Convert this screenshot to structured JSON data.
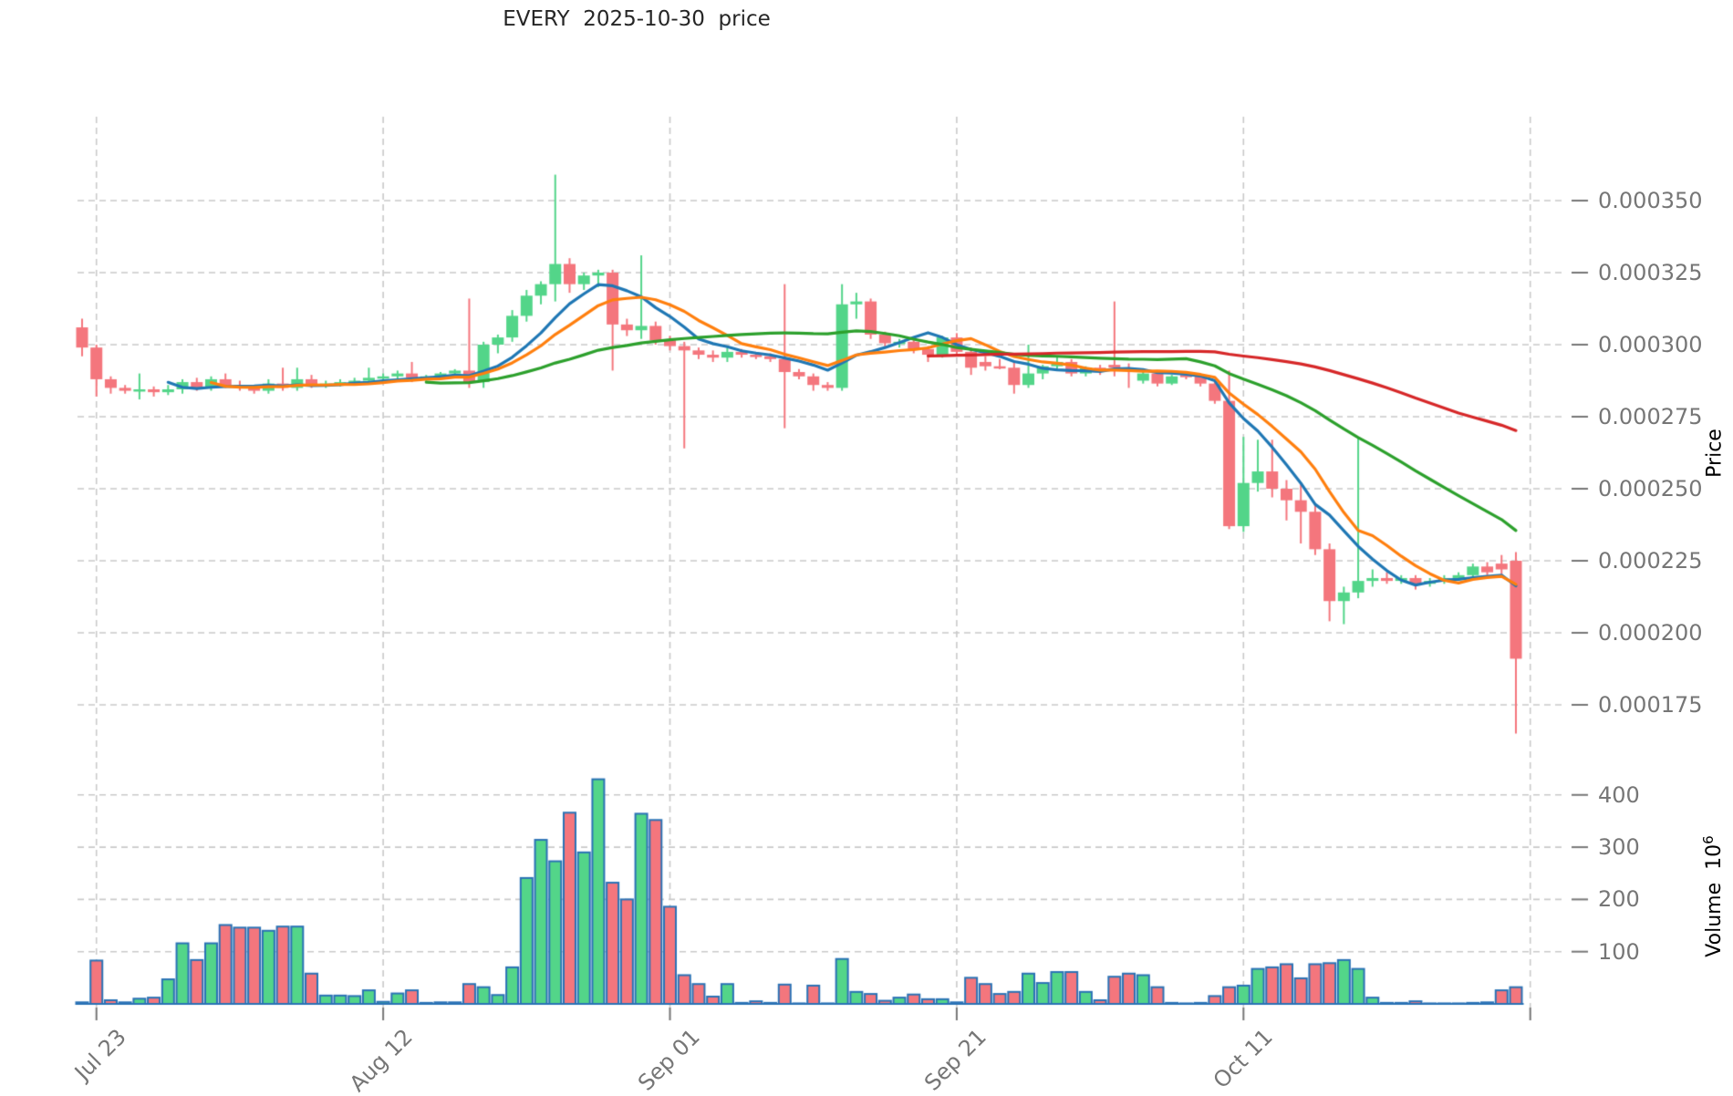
{
  "title": "EVERY  2025-10-30  price",
  "chart_data": {
    "type": "candlestick",
    "symbol": "EVERY",
    "as_of_date": "2025-10-30",
    "title": "EVERY  2025-10-30  price",
    "grid": true,
    "price_axis": {
      "label": "Price",
      "side": "right",
      "tick_labels": [
        "0.000350",
        "0.000325",
        "0.000300",
        "0.000275",
        "0.000250",
        "0.000225",
        "0.000200",
        "0.000175"
      ],
      "tick_values_micro": [
        350,
        325,
        300,
        275,
        250,
        225,
        200,
        175
      ],
      "ylim_micro": [
        158,
        379
      ]
    },
    "volume_axis": {
      "label": "Volume",
      "unit_base": "10",
      "unit_exponent": "6",
      "side": "right",
      "tick_labels": [
        "400",
        "300",
        "200",
        "100"
      ],
      "tick_values": [
        400,
        300,
        200,
        100
      ],
      "ylim": [
        0,
        447
      ]
    },
    "x_axis": {
      "tick_labels": [
        "Jul 23",
        "Aug 12",
        "Sep 01",
        "Sep 21",
        "Oct 11"
      ],
      "tick_day_index": [
        1,
        21,
        41,
        61,
        81
      ],
      "extra_gridline_day_index": 101,
      "label_rotation_deg": 45
    },
    "price_scale_note": "ohlc values below are price * 1e6; volume in millions",
    "columns": [
      "date",
      "open",
      "high",
      "low",
      "close",
      "volume_m"
    ],
    "candles": [
      [
        "Jul 22",
        306,
        309,
        296,
        299,
        3
      ],
      [
        "Jul 23",
        299,
        300,
        282,
        288,
        83
      ],
      [
        "Jul 24",
        288,
        289,
        283,
        285,
        7
      ],
      [
        "Jul 25",
        285,
        286,
        283,
        284,
        3
      ],
      [
        "Jul 26",
        284,
        290,
        281,
        284.5,
        10
      ],
      [
        "Jul 27",
        284.5,
        285.5,
        282,
        283.5,
        12
      ],
      [
        "Jul 28",
        283.5,
        286,
        282.5,
        284.5,
        47
      ],
      [
        "Jul 29",
        284.5,
        288,
        283,
        287,
        116
      ],
      [
        "Jul 30",
        287,
        288.5,
        284,
        285,
        84
      ],
      [
        "Jul 31",
        285,
        289,
        284,
        288,
        116
      ],
      [
        "Aug 01",
        288,
        290,
        285,
        286,
        151
      ],
      [
        "Aug 02",
        286,
        287.5,
        284,
        285,
        146
      ],
      [
        "Aug 03",
        285,
        286,
        283,
        284,
        146
      ],
      [
        "Aug 04",
        284,
        288,
        283,
        286.5,
        140
      ],
      [
        "Aug 05",
        286.5,
        292,
        284,
        285,
        148
      ],
      [
        "Aug 06",
        285,
        292,
        284,
        288,
        148
      ],
      [
        "Aug 07",
        288,
        289.5,
        285,
        286,
        58
      ],
      [
        "Aug 08",
        286,
        287.5,
        285,
        286.5,
        16
      ],
      [
        "Aug 09",
        286.5,
        288,
        285.5,
        287,
        16
      ],
      [
        "Aug 10",
        287,
        288.5,
        286,
        287.5,
        15
      ],
      [
        "Aug 11",
        287.5,
        292,
        287,
        288.5,
        26
      ],
      [
        "Aug 12",
        288.5,
        290,
        287,
        289,
        4
      ],
      [
        "Aug 13",
        289,
        291,
        288,
        290,
        20
      ],
      [
        "Aug 14",
        290,
        294,
        287,
        288.5,
        26
      ],
      [
        "Aug 15",
        288.5,
        289.5,
        287.5,
        289,
        2
      ],
      [
        "Aug 16",
        289,
        290.5,
        288,
        290,
        3
      ],
      [
        "Aug 17",
        290,
        291.5,
        288.5,
        291,
        3
      ],
      [
        "Aug 18",
        291,
        316,
        285,
        287,
        38
      ],
      [
        "Aug 19",
        287,
        301,
        285,
        300,
        32
      ],
      [
        "Aug 20",
        300,
        303.5,
        297,
        302.5,
        17
      ],
      [
        "Aug 21",
        302.5,
        312,
        301,
        310,
        70
      ],
      [
        "Aug 22",
        310,
        319,
        308,
        317,
        241
      ],
      [
        "Aug 23",
        317,
        322,
        314,
        321,
        314
      ],
      [
        "Aug 24",
        321,
        359,
        315,
        328,
        273
      ],
      [
        "Aug 25",
        328,
        330,
        318,
        321,
        366
      ],
      [
        "Aug 26",
        321,
        325,
        319,
        324,
        290
      ],
      [
        "Aug 27",
        324,
        326,
        320,
        325,
        430
      ],
      [
        "Aug 28",
        325,
        326,
        291,
        307,
        232
      ],
      [
        "Aug 29",
        307,
        309,
        303,
        305,
        200
      ],
      [
        "Aug 30",
        305,
        331,
        302,
        306.5,
        364
      ],
      [
        "Aug 31",
        306.5,
        308,
        300,
        301.5,
        352
      ],
      [
        "Sep 01",
        301.5,
        303,
        298,
        299.5,
        186
      ],
      [
        "Sep 02",
        299.5,
        301,
        264,
        298,
        55
      ],
      [
        "Sep 03",
        298,
        299,
        295,
        296.5,
        38
      ],
      [
        "Sep 04",
        296.5,
        298,
        294,
        295.5,
        14
      ],
      [
        "Sep 05",
        295.5,
        299,
        294,
        297.5,
        38
      ],
      [
        "Sep 06",
        297.5,
        298.5,
        295.5,
        296.5,
        2
      ],
      [
        "Sep 07",
        296.5,
        297.5,
        295,
        296,
        5
      ],
      [
        "Sep 08",
        296,
        297,
        294,
        295,
        2
      ],
      [
        "Sep 09",
        295,
        321,
        271,
        290.5,
        37
      ],
      [
        "Sep 10",
        290.5,
        291.5,
        288,
        289,
        1
      ],
      [
        "Sep 11",
        289,
        290,
        284,
        286,
        35
      ],
      [
        "Sep 12",
        286,
        287,
        284,
        285,
        1
      ],
      [
        "Sep 13",
        285,
        321,
        284,
        314,
        86
      ],
      [
        "Sep 14",
        314,
        318,
        309,
        315,
        23
      ],
      [
        "Sep 15",
        315,
        316,
        302,
        303.5,
        19
      ],
      [
        "Sep 16",
        303.5,
        304.5,
        299,
        300.5,
        6
      ],
      [
        "Sep 17",
        300.5,
        302,
        299,
        301,
        12
      ],
      [
        "Sep 18",
        301,
        302,
        297,
        298.5,
        18
      ],
      [
        "Sep 19",
        298.5,
        299.5,
        294,
        296.5,
        9
      ],
      [
        "Sep 20",
        296.5,
        303,
        295.5,
        302.5,
        9
      ],
      [
        "Sep 21",
        302.5,
        304,
        296.5,
        297.5,
        3
      ],
      [
        "Sep 22",
        297.5,
        299,
        289.5,
        292,
        50
      ],
      [
        "Sep 23",
        294,
        296,
        291,
        292.5,
        38
      ],
      [
        "Sep 24",
        292.5,
        295,
        291.5,
        292,
        19
      ],
      [
        "Sep 25",
        292,
        294.5,
        283,
        286,
        23
      ],
      [
        "Sep 26",
        286,
        300,
        285,
        290,
        58
      ],
      [
        "Sep 27",
        290,
        293,
        288,
        292.5,
        40
      ],
      [
        "Sep 28",
        292.5,
        296,
        291.5,
        294,
        61
      ],
      [
        "Sep 29",
        294,
        295,
        289,
        290,
        61
      ],
      [
        "Sep 30",
        290,
        292.5,
        289,
        292,
        23
      ],
      [
        "Oct 01",
        292,
        293,
        289.5,
        290.5,
        7
      ],
      [
        "Oct 02",
        293,
        315,
        289,
        292,
        52
      ],
      [
        "Oct 03",
        292,
        293.5,
        285,
        291,
        58
      ],
      [
        "Oct 04",
        287.5,
        290.5,
        286.5,
        290,
        55
      ],
      [
        "Oct 05",
        290,
        291,
        285.5,
        286.5,
        32
      ],
      [
        "Oct 06",
        286.5,
        289.5,
        286,
        289,
        2
      ],
      [
        "Oct 07",
        289.5,
        290.5,
        288,
        289,
        1
      ],
      [
        "Oct 08",
        289,
        290,
        285.5,
        286.5,
        2
      ],
      [
        "Oct 09",
        286.5,
        288,
        279.5,
        280.5,
        15
      ],
      [
        "Oct 10",
        280.5,
        291,
        236,
        237,
        32
      ],
      [
        "Oct 11",
        237,
        268,
        235,
        252,
        35
      ],
      [
        "Oct 12",
        252,
        267,
        249,
        256,
        67
      ],
      [
        "Oct 13",
        256,
        267,
        247,
        250,
        70
      ],
      [
        "Oct 14",
        250,
        253,
        239,
        246,
        76
      ],
      [
        "Oct 15",
        246,
        252,
        231,
        242,
        49
      ],
      [
        "Oct 16",
        242,
        245,
        227,
        229,
        76
      ],
      [
        "Oct 17",
        229,
        231,
        204,
        211,
        78
      ],
      [
        "Oct 18",
        211,
        216,
        203,
        214,
        84
      ],
      [
        "Oct 19",
        214,
        268,
        212,
        218,
        67
      ],
      [
        "Oct 20",
        218,
        222,
        216,
        219,
        12
      ],
      [
        "Oct 21",
        219,
        221,
        217,
        218,
        2
      ],
      [
        "Oct 22",
        218,
        220,
        217,
        219,
        2
      ],
      [
        "Oct 23",
        219,
        220,
        215,
        217,
        5
      ],
      [
        "Oct 24",
        217,
        219,
        216,
        218,
        1
      ],
      [
        "Oct 25",
        218,
        220,
        217,
        219,
        1
      ],
      [
        "Oct 26",
        219,
        221,
        218,
        220,
        1
      ],
      [
        "Oct 27",
        220,
        224,
        219,
        223,
        2
      ],
      [
        "Oct 28",
        223,
        224.5,
        220,
        221,
        3
      ],
      [
        "Oct 29",
        224,
        227,
        220,
        222,
        26
      ],
      [
        "Oct 30",
        225,
        228,
        165,
        191,
        32
      ]
    ],
    "moving_averages": [
      {
        "window": 7,
        "color": "#1f77b4"
      },
      {
        "window": 10,
        "color": "#ff7f0e"
      },
      {
        "window": 25,
        "color": "#2ca02c"
      },
      {
        "window": 60,
        "color": "#d62728"
      }
    ],
    "colors": {
      "up": "#53d589",
      "down": "#f4767d",
      "volume_edge": "#2a72b5",
      "grid": "#c9c9c9",
      "tick_text": "#767676",
      "title_text": "#262626",
      "axis_title_text": "#000000"
    },
    "legend": "none"
  }
}
